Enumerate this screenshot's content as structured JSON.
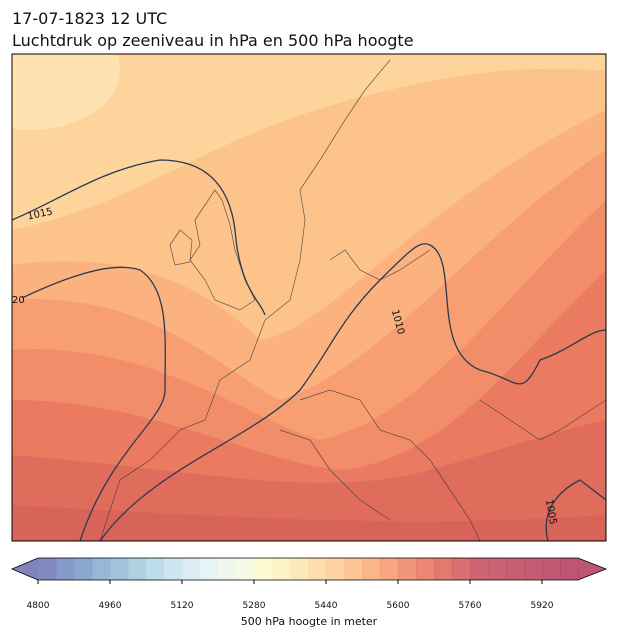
{
  "title_line1": "17-07-1823 12 UTC",
  "title_line2": "Luchtdruk op zeeniveau in hPa en 500 hPa hoogte",
  "map": {
    "contour_labels": [
      "1015",
      "1010",
      "1005",
      "20"
    ]
  },
  "colorbar": {
    "label": "500 hPa hoogte in meter",
    "lim": [
      4800,
      6000
    ],
    "ticks": [
      4800,
      4960,
      5120,
      5280,
      5440,
      5600,
      5760,
      5920
    ],
    "colors": [
      "#6b74b6",
      "#7088bf",
      "#7898c6",
      "#84aad0",
      "#92b8d6",
      "#a3c8dd",
      "#b3d7e6",
      "#c5e2ec",
      "#d6ebf1",
      "#e3f1f3",
      "#eef5ec",
      "#f4f8de",
      "#fbf8cb",
      "#fdf1bd",
      "#fde6b0",
      "#fdd9a1",
      "#fccb92",
      "#fbbb84",
      "#f9a877",
      "#f5966b",
      "#ef8462",
      "#e7725b",
      "#dd6357",
      "#d15757",
      "#c44b59",
      "#c0485c",
      "#bc445b",
      "#b8405b",
      "#b53c5a",
      "#b0385a"
    ],
    "extend_colors": [
      "#6b6fb0",
      "#b0385a"
    ]
  }
}
